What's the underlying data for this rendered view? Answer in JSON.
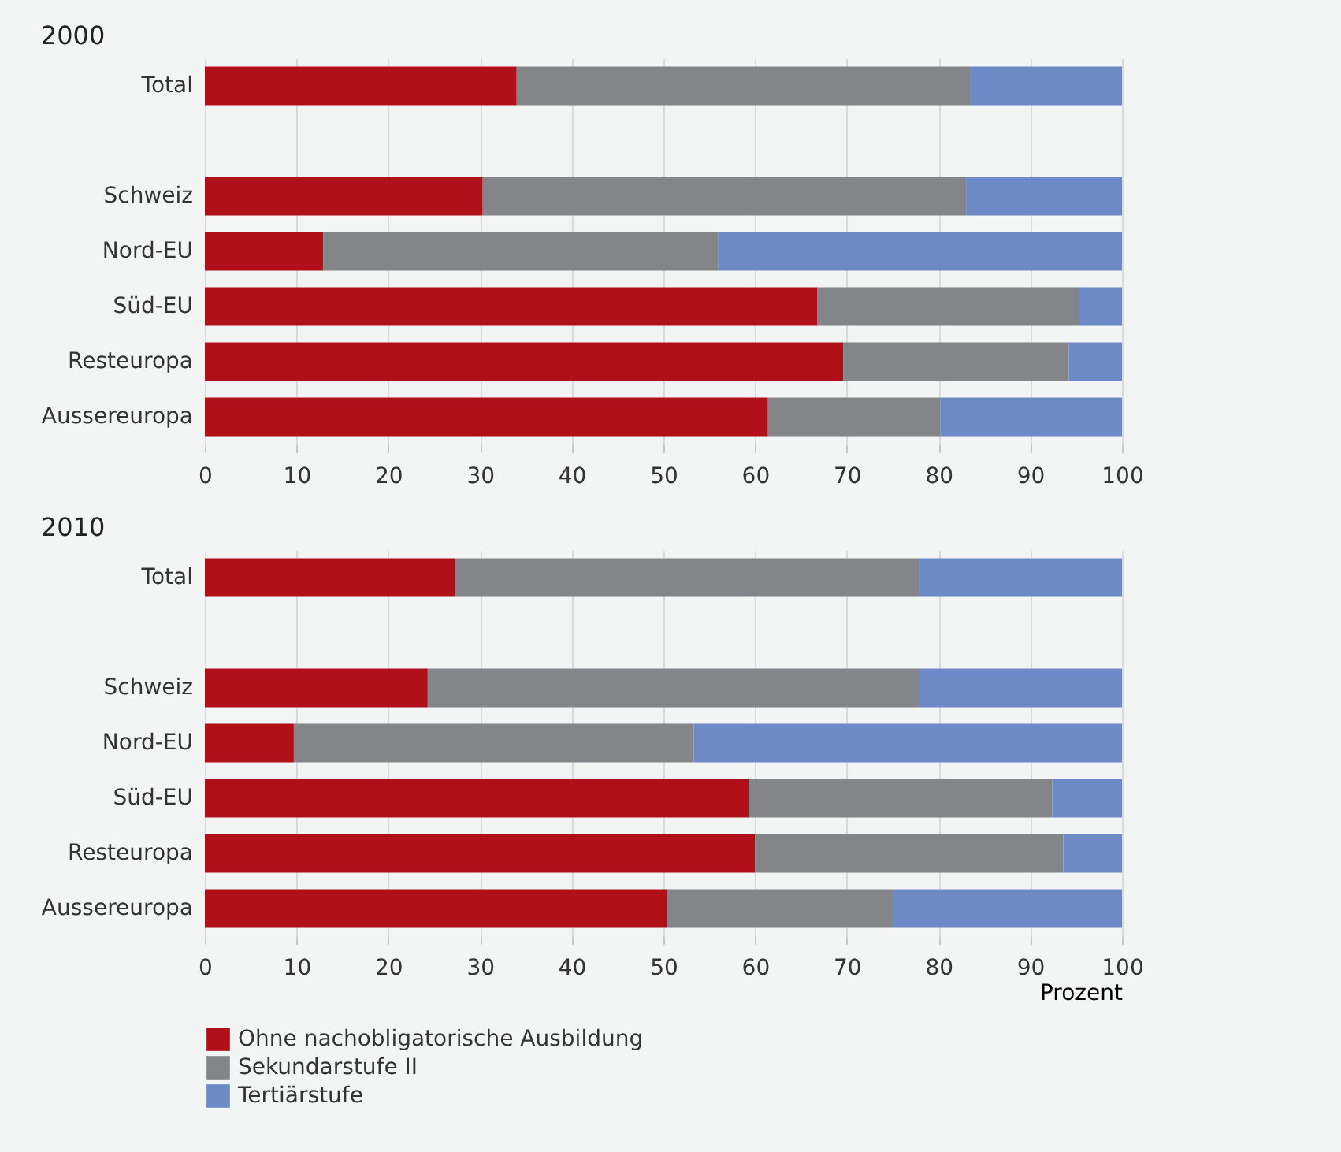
{
  "chart_data": [
    {
      "type": "bar",
      "orientation": "horizontal",
      "stacked": true,
      "title": "2000",
      "categories": [
        "Total",
        null,
        "Schweiz",
        "Nord-EU",
        "Süd-EU",
        "Resteuropa",
        "Aussereuropa"
      ],
      "series": [
        {
          "name": "Ohne nachobligatorische Ausbildung",
          "color": "#b0101a",
          "values": [
            34.0,
            null,
            30.3,
            12.9,
            66.8,
            69.6,
            61.4
          ]
        },
        {
          "name": "Sekundarstufe II",
          "color": "#848589",
          "values": [
            49.5,
            null,
            52.7,
            43.1,
            28.5,
            24.6,
            18.8
          ]
        },
        {
          "name": "Tertiärstufe",
          "color": "#6d8ac6",
          "values": [
            16.5,
            null,
            17.0,
            44.0,
            4.7,
            5.8,
            19.8
          ]
        }
      ],
      "xlim": [
        0,
        100
      ],
      "xticks": [
        0,
        10,
        20,
        30,
        40,
        50,
        60,
        70,
        80,
        90,
        100
      ],
      "grid": "x",
      "legend": "bottom"
    },
    {
      "type": "bar",
      "orientation": "horizontal",
      "stacked": true,
      "title": "2010",
      "xlabel": "Prozent",
      "categories": [
        "Total",
        null,
        "Schweiz",
        "Nord-EU",
        "Süd-EU",
        "Resteuropa",
        "Aussereuropa"
      ],
      "series": [
        {
          "name": "Ohne nachobligatorische Ausbildung",
          "color": "#b0101a",
          "values": [
            27.3,
            null,
            24.3,
            9.7,
            59.3,
            60.0,
            50.4
          ]
        },
        {
          "name": "Sekundarstufe II",
          "color": "#848589",
          "values": [
            50.7,
            null,
            53.6,
            43.6,
            33.1,
            33.6,
            24.6
          ]
        },
        {
          "name": "Tertiärstufe",
          "color": "#6d8ac6",
          "values": [
            22.0,
            null,
            22.1,
            46.7,
            7.6,
            6.4,
            25.0
          ]
        }
      ],
      "xlim": [
        0,
        100
      ],
      "xticks": [
        0,
        10,
        20,
        30,
        40,
        50,
        60,
        70,
        80,
        90,
        100
      ],
      "grid": "x",
      "legend": "bottom"
    }
  ]
}
